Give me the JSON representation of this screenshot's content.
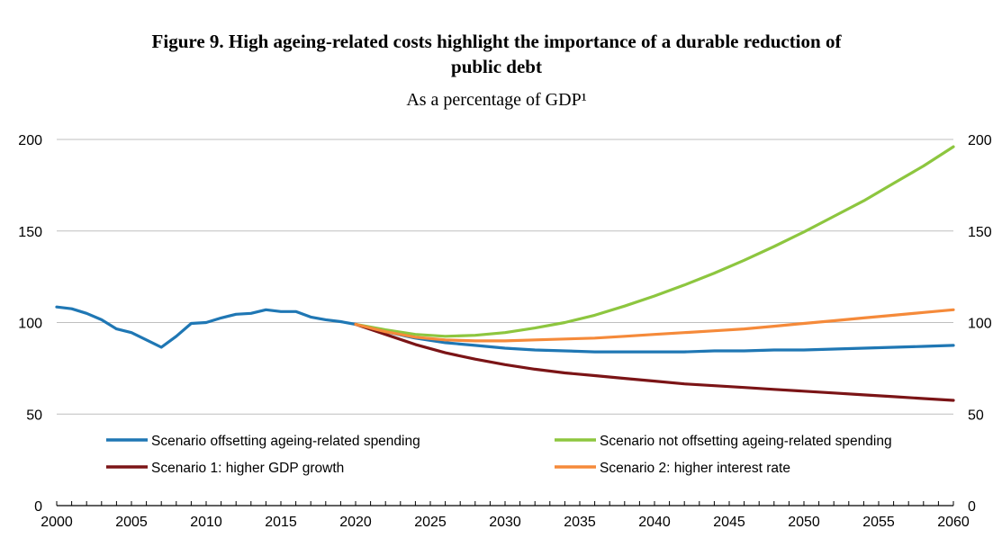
{
  "chart_data": {
    "type": "line",
    "title_line1": "Figure 9. High ageing-related costs highlight the importance of a durable reduction of",
    "title_line2": "public debt",
    "subtitle": "As a percentage of GDP¹",
    "xlim": [
      2000,
      2060
    ],
    "ylim": [
      0,
      200
    ],
    "x_ticks": [
      2000,
      2005,
      2010,
      2015,
      2020,
      2025,
      2030,
      2035,
      2040,
      2045,
      2050,
      2055,
      2060
    ],
    "y_ticks": [
      0,
      50,
      100,
      150,
      200
    ],
    "grid": "horizontal",
    "legend_position": "bottom-inside",
    "series": [
      {
        "name": "Scenario offsetting ageing-related spending",
        "color": "#1f77b4",
        "x": [
          2000,
          2001,
          2002,
          2003,
          2004,
          2005,
          2006,
          2007,
          2008,
          2009,
          2010,
          2011,
          2012,
          2013,
          2014,
          2015,
          2016,
          2017,
          2018,
          2019,
          2020,
          2022,
          2024,
          2026,
          2028,
          2030,
          2032,
          2034,
          2036,
          2038,
          2040,
          2042,
          2044,
          2046,
          2048,
          2050,
          2052,
          2054,
          2056,
          2058,
          2060
        ],
        "y": [
          108.5,
          107.5,
          105,
          101.5,
          96.5,
          94.5,
          90.5,
          86.5,
          92.5,
          99.5,
          100,
          102.5,
          104.5,
          105,
          107,
          106,
          106,
          103,
          101.5,
          100.5,
          99,
          95,
          91.5,
          89,
          87.5,
          86,
          85,
          84.5,
          84,
          84,
          84,
          84,
          84.5,
          84.5,
          85,
          85,
          85.5,
          86,
          86.5,
          87,
          87.5
        ]
      },
      {
        "name": "Scenario not offsetting ageing-related spending",
        "color": "#8dc63f",
        "x": [
          2020,
          2022,
          2024,
          2026,
          2028,
          2030,
          2032,
          2034,
          2036,
          2038,
          2040,
          2042,
          2044,
          2046,
          2048,
          2050,
          2052,
          2054,
          2056,
          2058,
          2060
        ],
        "y": [
          99,
          96,
          93.5,
          92.5,
          93,
          94.5,
          97,
          100,
          104,
          109,
          114.5,
          120.5,
          127,
          134,
          141.5,
          149.5,
          158,
          166.5,
          176,
          185.5,
          196
        ]
      },
      {
        "name": "Scenario 1: higher GDP growth",
        "color": "#7b1416",
        "x": [
          2020,
          2022,
          2024,
          2026,
          2028,
          2030,
          2032,
          2034,
          2036,
          2038,
          2040,
          2042,
          2044,
          2046,
          2048,
          2050,
          2052,
          2054,
          2056,
          2058,
          2060
        ],
        "y": [
          99,
          93.5,
          88,
          83.5,
          80,
          77,
          74.5,
          72.5,
          71,
          69.5,
          68,
          66.5,
          65.5,
          64.5,
          63.5,
          62.5,
          61.5,
          60.5,
          59.5,
          58.5,
          57.5
        ]
      },
      {
        "name": "Scenario 2: higher interest rate",
        "color": "#f58a3a",
        "x": [
          2020,
          2022,
          2024,
          2026,
          2028,
          2030,
          2032,
          2034,
          2036,
          2038,
          2040,
          2042,
          2044,
          2046,
          2048,
          2050,
          2052,
          2054,
          2056,
          2058,
          2060
        ],
        "y": [
          99,
          95,
          92,
          90.5,
          90,
          90,
          90.5,
          91,
          91.5,
          92.5,
          93.5,
          94.5,
          95.5,
          96.5,
          98,
          99.5,
          101,
          102.5,
          104,
          105.5,
          107
        ]
      }
    ]
  }
}
